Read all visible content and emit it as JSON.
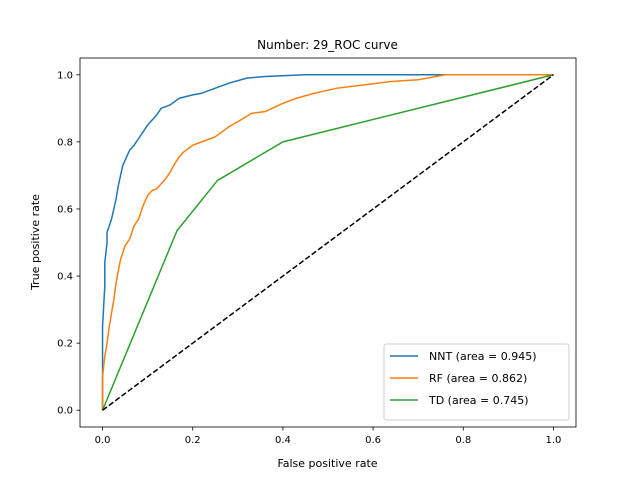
{
  "chart_data": {
    "type": "line",
    "title": "Number: 29_ROC curve",
    "xlabel": "False positive rate",
    "ylabel": "True positive rate",
    "xlim": [
      -0.05,
      1.05
    ],
    "ylim": [
      -0.05,
      1.05
    ],
    "x_ticks": [
      "0.0",
      "0.2",
      "0.4",
      "0.6",
      "0.8",
      "1.0"
    ],
    "y_ticks": [
      "0.0",
      "0.2",
      "0.4",
      "0.6",
      "0.8",
      "1.0"
    ],
    "grid": false,
    "legend_position": "lower right",
    "series": [
      {
        "name": "NNT (area = 0.945)",
        "color": "#1f77b4",
        "x": [
          0.0,
          0.0,
          0.005,
          0.005,
          0.01,
          0.01,
          0.015,
          0.02,
          0.025,
          0.03,
          0.035,
          0.04,
          0.045,
          0.05,
          0.055,
          0.06,
          0.07,
          0.08,
          0.09,
          0.1,
          0.11,
          0.12,
          0.13,
          0.15,
          0.17,
          0.2,
          0.22,
          0.25,
          0.28,
          0.32,
          0.36,
          0.45,
          0.6,
          0.76,
          1.0
        ],
        "y": [
          0.0,
          0.25,
          0.37,
          0.44,
          0.5,
          0.53,
          0.55,
          0.57,
          0.6,
          0.63,
          0.67,
          0.7,
          0.73,
          0.745,
          0.76,
          0.775,
          0.79,
          0.81,
          0.83,
          0.85,
          0.865,
          0.88,
          0.9,
          0.91,
          0.93,
          0.94,
          0.945,
          0.96,
          0.975,
          0.99,
          0.995,
          1.0,
          1.0,
          1.0,
          1.0
        ]
      },
      {
        "name": "RF (area = 0.862)",
        "color": "#ff7f0e",
        "x": [
          0.0,
          0.0,
          0.005,
          0.01,
          0.015,
          0.02,
          0.025,
          0.03,
          0.04,
          0.05,
          0.06,
          0.07,
          0.08,
          0.09,
          0.1,
          0.11,
          0.12,
          0.14,
          0.15,
          0.16,
          0.17,
          0.18,
          0.2,
          0.22,
          0.25,
          0.28,
          0.3,
          0.33,
          0.36,
          0.4,
          0.43,
          0.47,
          0.52,
          0.58,
          0.64,
          0.7,
          0.76,
          1.0
        ],
        "y": [
          0.0,
          0.1,
          0.16,
          0.2,
          0.25,
          0.29,
          0.33,
          0.38,
          0.45,
          0.49,
          0.51,
          0.55,
          0.57,
          0.61,
          0.64,
          0.655,
          0.66,
          0.69,
          0.71,
          0.735,
          0.755,
          0.77,
          0.79,
          0.8,
          0.815,
          0.845,
          0.86,
          0.885,
          0.89,
          0.915,
          0.93,
          0.945,
          0.96,
          0.97,
          0.98,
          0.985,
          1.0,
          1.0
        ]
      },
      {
        "name": "TD (area = 0.745)",
        "color": "#2ca02c",
        "x": [
          0.0,
          0.165,
          0.255,
          0.4,
          1.0
        ],
        "y": [
          0.0,
          0.535,
          0.685,
          0.8,
          1.0
        ]
      },
      {
        "name": "",
        "color": "#000000",
        "dashed": true,
        "x": [
          0.0,
          1.0
        ],
        "y": [
          0.0,
          1.0
        ]
      }
    ]
  }
}
